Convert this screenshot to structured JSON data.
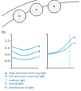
{
  "chart_data": [
    {
      "type": "line",
      "y_label": "ηP",
      "x": [
        0,
        1,
        2,
        3,
        4
      ],
      "xlim": [
        0,
        4
      ],
      "ylim": [
        0.8,
        1.3
      ],
      "yticks": [
        0.9,
        {
          "value": 1.0,
          "label": "1.0"
        },
        1.1,
        1.2
      ],
      "tick_labels": "y",
      "series": [
        {
          "name": "A",
          "color": "#4fb3dc",
          "values": [
            1.05,
            1.0,
            0.98,
            1.0,
            1.04
          ]
        },
        {
          "name": "B",
          "color": "#4fb3dc",
          "values": [
            1.12,
            1.08,
            1.06,
            1.08,
            1.12
          ]
        },
        {
          "name": "C",
          "color": "#4fb3dc",
          "values": [
            0.95,
            0.93,
            0.92,
            0.93,
            0.96
          ]
        }
      ]
    },
    {
      "type": "line",
      "x": [
        0,
        1,
        2,
        3,
        4
      ],
      "xlim": [
        0,
        4
      ],
      "ylim": [
        0.8,
        1.3
      ],
      "tick_labels": false,
      "annotations": [
        {
          "type": "vline",
          "x": 3.5,
          "line_style": "dashed"
        }
      ],
      "series": [
        {
          "name": "D",
          "color": "#4fb3dc",
          "values": [
            1.0,
            1.01,
            1.03,
            1.08,
            1.16
          ]
        },
        {
          "name": "E",
          "color": "#4fb3dc",
          "values": [
            1.0,
            1.02,
            1.06,
            1.14,
            1.25
          ]
        }
      ]
    }
  ],
  "legend_items": [
    {
      "key": "A",
      "text": "high-pressure mercury light"
    },
    {
      "key": "B",
      "text": "low-pressure mercury light"
    },
    {
      "key": "C",
      "text": "sodium light"
    },
    {
      "key": "D",
      "text": "mixed light"
    },
    {
      "key": "E",
      "text": "distribution of light"
    }
  ]
}
